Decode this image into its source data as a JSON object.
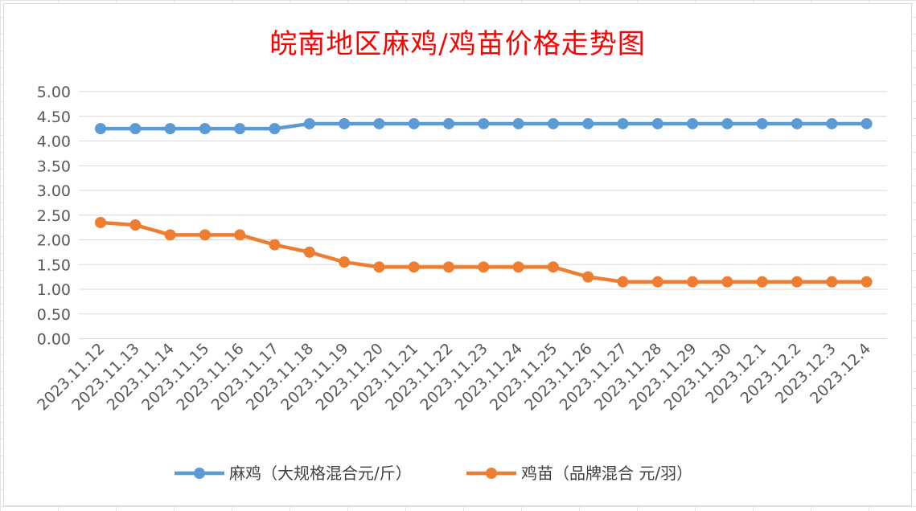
{
  "chart_data": {
    "type": "line",
    "title": "皖南地区麻鸡/鸡苗价格走势图",
    "xlabel": "",
    "ylabel": "",
    "ylim": [
      0,
      5
    ],
    "yticks": [
      "0.00",
      "0.50",
      "1.00",
      "1.50",
      "2.00",
      "2.50",
      "3.00",
      "3.50",
      "4.00",
      "4.50",
      "5.00"
    ],
    "grid": true,
    "legend_position": "bottom",
    "categories": [
      "2023.11.12",
      "2023.11.13",
      "2023.11.14",
      "2023.11.15",
      "2023.11.16",
      "2023.11.17",
      "2023.11.18",
      "2023.11.19",
      "2023.11.20",
      "2023.11.21",
      "2023.11.22",
      "2023.11.23",
      "2023.11.24",
      "2023.11.25",
      "2023.11.26",
      "2023.11.27",
      "2023.11.28",
      "2023.11.29",
      "2023.11.30",
      "2023.12.1",
      "2023.12.2",
      "2023.12.3",
      "2023.12.4"
    ],
    "series": [
      {
        "name": "麻鸡（大规格混合元/斤）",
        "color": "#5b9bd5",
        "values": [
          4.25,
          4.25,
          4.25,
          4.25,
          4.25,
          4.25,
          4.35,
          4.35,
          4.35,
          4.35,
          4.35,
          4.35,
          4.35,
          4.35,
          4.35,
          4.35,
          4.35,
          4.35,
          4.35,
          4.35,
          4.35,
          4.35,
          4.35
        ]
      },
      {
        "name": "鸡苗（品牌混合 元/羽）",
        "color": "#ed7d31",
        "values": [
          2.35,
          2.3,
          2.1,
          2.1,
          2.1,
          1.9,
          1.75,
          1.55,
          1.45,
          1.45,
          1.45,
          1.45,
          1.45,
          1.45,
          1.25,
          1.15,
          1.15,
          1.15,
          1.15,
          1.15,
          1.15,
          1.15,
          1.15
        ]
      }
    ]
  }
}
